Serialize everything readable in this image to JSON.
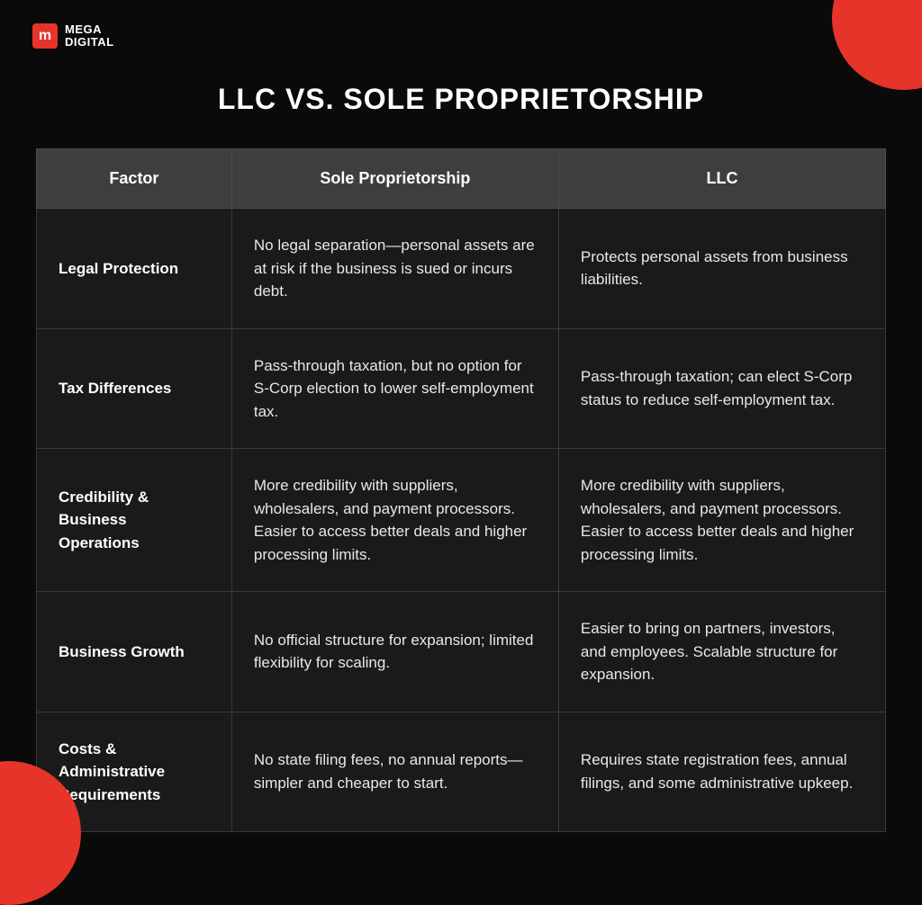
{
  "branding": {
    "logo_glyph": "m",
    "logo_line1": "MEGA",
    "logo_line2": "DIGITAL"
  },
  "title": "LLC VS. SOLE PROPRIETORSHIP",
  "table": {
    "type": "table",
    "columns": [
      "Factor",
      "Sole Proprietorship",
      "LLC"
    ],
    "rows": [
      {
        "factor": "Legal Protection",
        "sp": "No legal separation—personal assets are at risk if the business is sued or incurs debt.",
        "llc": "Protects personal assets from business liabilities."
      },
      {
        "factor": "Tax Differences",
        "sp": "Pass-through taxation, but no option for S-Corp election to lower self-employment tax.",
        "llc": "Pass-through taxation; can elect S-Corp status to reduce self-employment tax."
      },
      {
        "factor": "Credibility & Business Operations",
        "sp": "More credibility with suppliers, wholesalers, and payment processors. Easier to access better deals and higher processing limits.",
        "llc": "More credibility with suppliers, wholesalers, and payment processors. Easier to access better deals and higher processing limits."
      },
      {
        "factor": "Business Growth",
        "sp": "No official structure for expansion; limited flexibility for scaling.",
        "llc": "Easier to bring on partners, investors, and employees. Scalable structure for expansion."
      },
      {
        "factor": "Costs & Administrative Requirements",
        "sp": "No state filing fees, no annual reports—simpler and cheaper to start.",
        "llc": "Requires state registration fees, annual filings, and some administrative upkeep."
      }
    ],
    "header_bg": "#3e3e3e",
    "cell_bg": "#1a1a1a",
    "border_color": "#3a3a3a",
    "text_color": "#e8e8e8",
    "header_font_size": 18,
    "cell_font_size": 17
  },
  "colors": {
    "background": "#0a0a0a",
    "accent": "#e6342a"
  }
}
